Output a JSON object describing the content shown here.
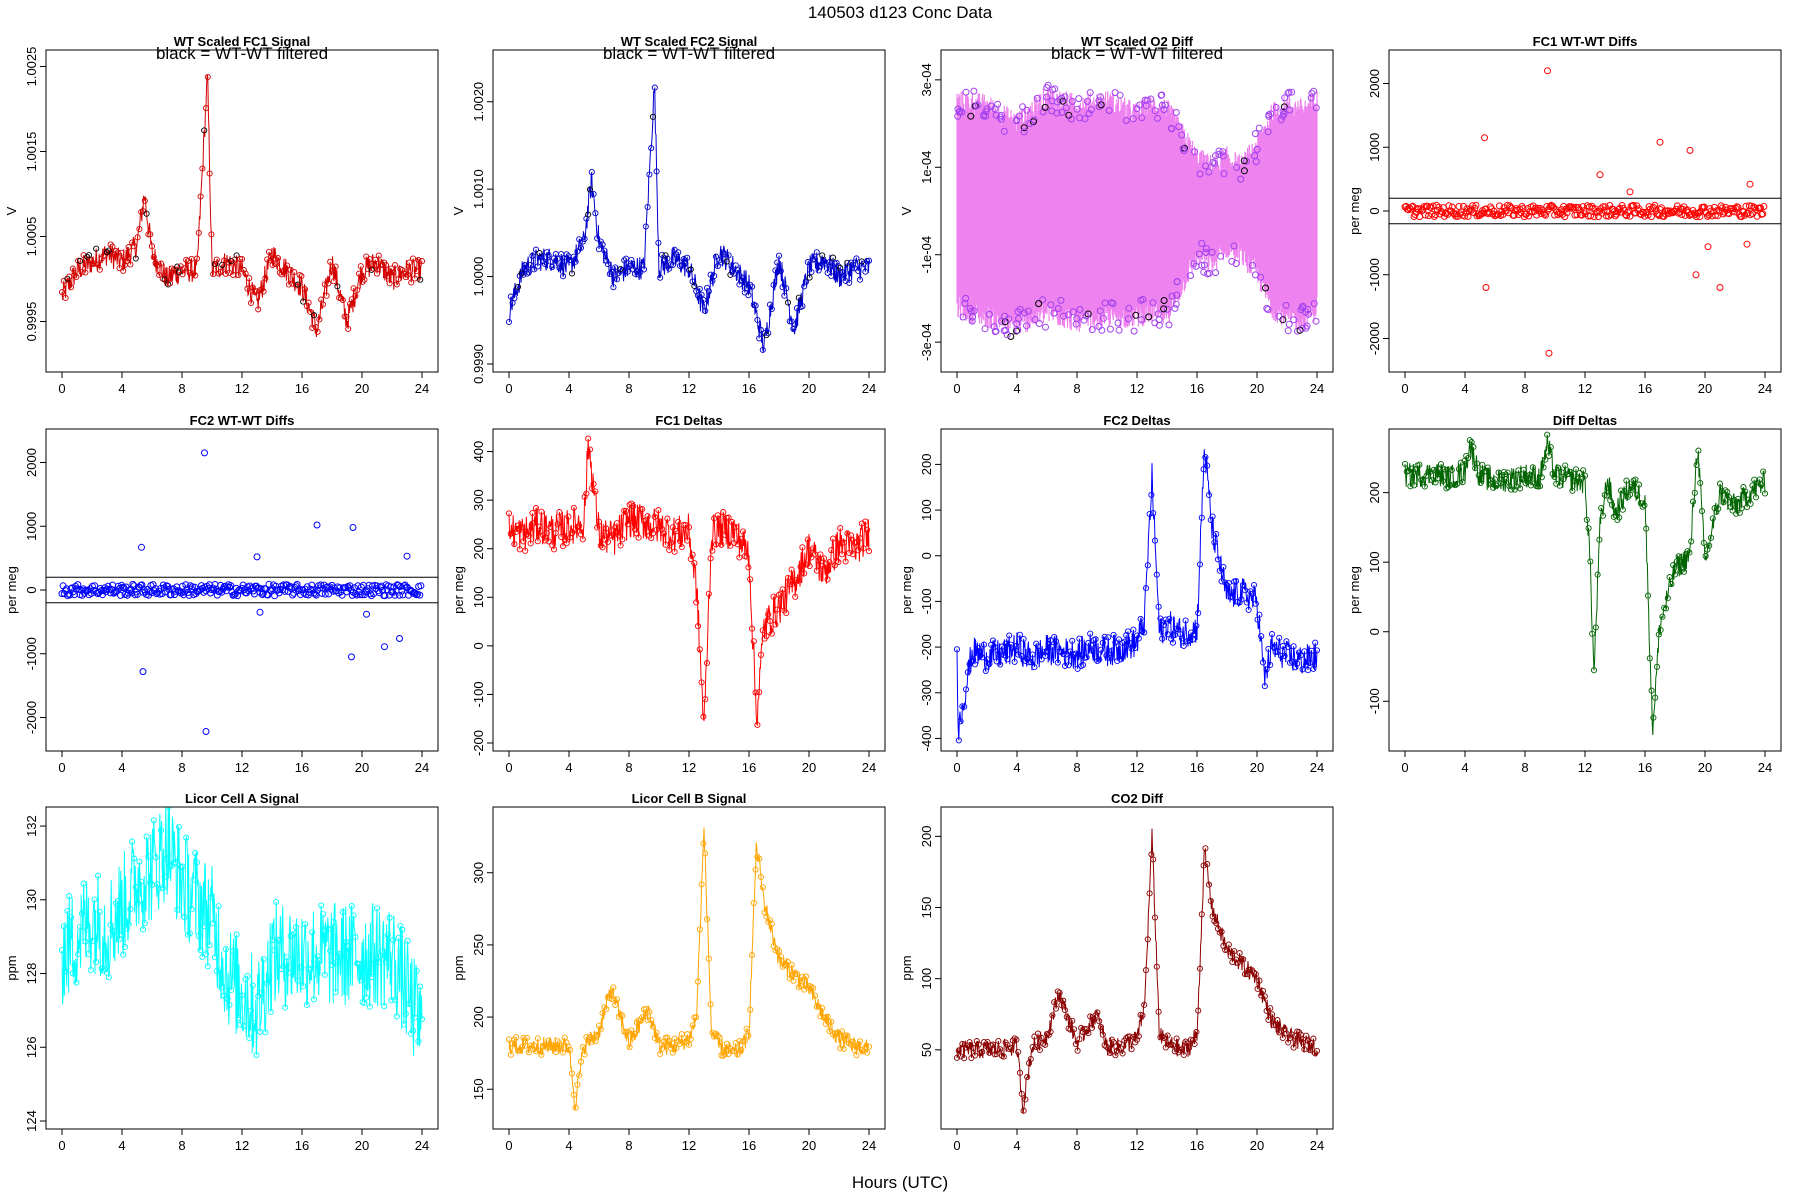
{
  "figure": {
    "title": "140503   d123   Conc Data",
    "xlabel": "Hours (UTC)"
  },
  "chart_data": [
    {
      "type": "line",
      "title": "WT Scaled FC1 Signal",
      "note": "black = WT-WT filtered",
      "ylabel": "V",
      "color": "#d40000",
      "xlim": [
        0,
        24
      ],
      "ylim": [
        0.999,
        1.0026
      ],
      "xticks": [
        0,
        4,
        8,
        12,
        16,
        20,
        24
      ],
      "yticks": [
        0.9995,
        1.0005,
        1.0015,
        1.0025
      ],
      "ytick_labels": [
        "0.9995",
        "1.0005",
        "1.0015",
        "1.0025"
      ],
      "x": [
        0,
        1,
        2,
        3,
        4,
        5,
        5.5,
        6,
        7,
        8,
        9,
        9.7,
        10,
        11,
        12,
        13,
        14,
        15,
        16,
        17,
        18,
        19,
        20,
        21,
        22,
        23,
        24
      ],
      "y": [
        0.9998,
        1.0001,
        1.0002,
        1.0003,
        1.0002,
        1.0004,
        1.001,
        1.0003,
        1.0,
        1.0001,
        1.0001,
        1.0024,
        1.0001,
        1.0002,
        1.0001,
        0.9997,
        1.0003,
        1.0001,
        0.9999,
        0.9994,
        1.0002,
        0.9995,
        1.0001,
        1.0002,
        1.0,
        1.0001,
        1.0001
      ]
    },
    {
      "type": "line",
      "title": "WT Scaled FC2 Signal",
      "note": "black = WT-WT filtered",
      "ylabel": "V",
      "color": "#0000cc",
      "xlim": [
        0,
        24
      ],
      "ylim": [
        0.999,
        1.0025
      ],
      "xticks": [
        0,
        4,
        8,
        12,
        16,
        20,
        24
      ],
      "yticks": [
        0.999,
        1.0,
        1.001,
        1.002
      ],
      "ytick_labels": [
        "0.9990",
        "1.0000",
        "1.0010",
        "1.0020"
      ],
      "x": [
        0,
        1,
        2,
        3,
        4,
        5,
        5.5,
        6,
        7,
        8,
        9,
        9.7,
        10,
        11,
        12,
        13,
        14,
        15,
        16,
        17,
        18,
        19,
        20,
        21,
        22,
        23,
        24
      ],
      "y": [
        0.9996,
        1.0001,
        1.0002,
        1.0002,
        1.0001,
        1.0004,
        1.0011,
        1.0004,
        1.0,
        1.0001,
        1.0001,
        1.0022,
        1.0001,
        1.0002,
        1.0001,
        0.9996,
        1.0003,
        1.0001,
        0.9999,
        0.9992,
        1.0002,
        0.9994,
        1.0001,
        1.0002,
        1.0,
        1.0001,
        1.0001
      ]
    },
    {
      "type": "line",
      "title": "WT Scaled O2 Diff",
      "note": "black = WT-WT filtered",
      "ylabel": "V",
      "color": "#ee82ee",
      "marker_color": "#a040f0",
      "xlim": [
        0,
        24
      ],
      "ylim": [
        -0.00035,
        0.00035
      ],
      "xticks": [
        0,
        4,
        8,
        12,
        16,
        20,
        24
      ],
      "yticks": [
        -0.0003,
        -0.0001,
        0.0001,
        0.0003
      ],
      "ytick_labels": [
        "-3e-04",
        "-1e-04",
        "1e-04",
        "3e-04"
      ],
      "x": [
        0,
        2,
        4,
        6,
        8,
        10,
        12,
        13,
        14,
        16,
        17,
        18,
        19,
        20,
        21,
        22,
        23,
        24
      ],
      "upper": [
        0.00025,
        0.00024,
        0.0002,
        0.00026,
        0.00024,
        0.00025,
        0.00022,
        0.00024,
        0.00023,
        0.00012,
        0.0001,
        0.00012,
        0.0001,
        0.00015,
        0.00022,
        0.00024,
        0.00023,
        0.00025
      ],
      "lower": [
        -0.00022,
        -0.00024,
        -0.00026,
        -0.00023,
        -0.00025,
        -0.00024,
        -0.00024,
        -0.00023,
        -0.00024,
        -0.0001,
        -0.00012,
        -8e-05,
        -0.0001,
        -0.00014,
        -0.00022,
        -0.00024,
        -0.00025,
        -0.00022
      ]
    },
    {
      "type": "scatter",
      "title": "FC1 WT-WT Diffs",
      "ylabel": "per meg",
      "color": "#ff0000",
      "xlim": [
        0,
        24
      ],
      "ylim": [
        -2400,
        2400
      ],
      "xticks": [
        0,
        4,
        8,
        12,
        16,
        20,
        24
      ],
      "yticks": [
        -2000,
        -1000,
        0,
        1000,
        2000
      ],
      "ytick_labels": [
        "-2000",
        "-1000",
        "0",
        "1000",
        "2000"
      ],
      "hlines": [
        200,
        -200
      ],
      "outliers": [
        [
          5.3,
          1150
        ],
        [
          5.4,
          -1200
        ],
        [
          9.5,
          2200
        ],
        [
          9.6,
          -2230
        ],
        [
          13.0,
          570
        ],
        [
          15.0,
          300
        ],
        [
          17.0,
          1080
        ],
        [
          19.0,
          950
        ],
        [
          19.4,
          -1000
        ],
        [
          20.2,
          -560
        ],
        [
          21.0,
          -1200
        ],
        [
          22.8,
          -520
        ],
        [
          23.0,
          420
        ]
      ]
    },
    {
      "type": "scatter",
      "title": "FC2 WT-WT Diffs",
      "ylabel": "per meg",
      "color": "#0000ff",
      "xlim": [
        0,
        24
      ],
      "ylim": [
        -2400,
        2400
      ],
      "xticks": [
        0,
        4,
        8,
        12,
        16,
        20,
        24
      ],
      "yticks": [
        -2000,
        -1000,
        0,
        1000,
        2000
      ],
      "ytick_labels": [
        "-2000",
        "-1000",
        "0",
        "1000",
        "2000"
      ],
      "hlines": [
        200,
        -200
      ],
      "outliers": [
        [
          5.3,
          670
        ],
        [
          5.4,
          -1280
        ],
        [
          9.5,
          2150
        ],
        [
          9.6,
          -2220
        ],
        [
          13.0,
          520
        ],
        [
          13.2,
          -350
        ],
        [
          17.0,
          1020
        ],
        [
          19.3,
          -1050
        ],
        [
          19.4,
          980
        ],
        [
          20.3,
          -380
        ],
        [
          21.5,
          -890
        ],
        [
          22.5,
          -760
        ],
        [
          23.0,
          530
        ]
      ]
    },
    {
      "type": "line",
      "title": "FC1 Deltas",
      "ylabel": "per meg",
      "color": "#ff0000",
      "xlim": [
        0,
        24
      ],
      "ylim": [
        -200,
        430
      ],
      "xticks": [
        0,
        4,
        8,
        12,
        16,
        20,
        24
      ],
      "yticks": [
        -200,
        -100,
        0,
        100,
        200,
        300,
        400
      ],
      "ytick_labels": [
        "-200",
        "-100",
        "0",
        "100",
        "200",
        "300",
        "400"
      ],
      "x": [
        0,
        1,
        2,
        3,
        4,
        5,
        5.3,
        6,
        7,
        8,
        9,
        10,
        11,
        12,
        12.5,
        13,
        13.5,
        14,
        15,
        16,
        16.5,
        17,
        18,
        19,
        20,
        21,
        22,
        23,
        24
      ],
      "y": [
        240,
        230,
        250,
        235,
        245,
        255,
        420,
        230,
        220,
        260,
        255,
        245,
        230,
        235,
        120,
        -170,
        230,
        240,
        235,
        190,
        -150,
        40,
        80,
        130,
        200,
        150,
        210,
        200,
        230
      ]
    },
    {
      "type": "line",
      "title": "FC2 Deltas",
      "ylabel": "per meg",
      "color": "#0000ff",
      "xlim": [
        0,
        24
      ],
      "ylim": [
        -410,
        260
      ],
      "xticks": [
        0,
        4,
        8,
        12,
        16,
        20,
        24
      ],
      "yticks": [
        -400,
        -300,
        -200,
        -100,
        0,
        100,
        200
      ],
      "ytick_labels": [
        "-400",
        "-300",
        "-200",
        "-100",
        "0",
        "100",
        "200"
      ],
      "x": [
        0,
        0.1,
        1,
        2,
        3,
        4,
        5,
        6,
        7,
        8,
        9,
        10,
        11,
        12,
        12.5,
        13,
        13.5,
        14,
        15,
        16,
        16.5,
        17,
        18,
        19,
        20,
        20.5,
        21,
        22,
        23,
        24
      ],
      "y": [
        -220,
        -380,
        -210,
        -220,
        -215,
        -200,
        -225,
        -205,
        -210,
        -215,
        -200,
        -210,
        -200,
        -190,
        -140,
        170,
        -170,
        -150,
        -170,
        -160,
        240,
        60,
        -90,
        -80,
        -100,
        -270,
        -200,
        -220,
        -230,
        -220
      ]
    },
    {
      "type": "line",
      "title": "Diff Deltas",
      "ylabel": "per meg",
      "color": "#006400",
      "xlim": [
        0,
        24
      ],
      "ylim": [
        -160,
        280
      ],
      "xticks": [
        0,
        4,
        8,
        12,
        16,
        20,
        24
      ],
      "yticks": [
        -100,
        0,
        100,
        200
      ],
      "ytick_labels": [
        "-100",
        "0",
        "100",
        "200"
      ],
      "x": [
        0,
        1,
        2,
        3,
        4,
        4.3,
        5,
        6,
        7,
        8,
        9,
        9.5,
        10,
        11,
        12,
        12.3,
        12.6,
        13,
        13.5,
        14,
        15,
        16,
        16.5,
        17,
        18,
        19,
        19.5,
        20,
        21,
        22,
        23,
        24
      ],
      "y": [
        225,
        225,
        228,
        222,
        230,
        270,
        225,
        215,
        220,
        225,
        222,
        270,
        225,
        220,
        215,
        120,
        -60,
        150,
        220,
        170,
        210,
        190,
        -140,
        10,
        90,
        110,
        270,
        100,
        200,
        180,
        200,
        215
      ]
    },
    {
      "type": "line",
      "title": "Licor Cell A Signal",
      "ylabel": "ppm",
      "color": "#00ffff",
      "xlim": [
        0,
        24
      ],
      "ylim": [
        124,
        132.3
      ],
      "xticks": [
        0,
        4,
        8,
        12,
        16,
        20,
        24
      ],
      "yticks": [
        124,
        126,
        128,
        130,
        132
      ],
      "ytick_labels": [
        "124",
        "126",
        "128",
        "130",
        "132"
      ],
      "x": [
        0,
        1,
        2,
        3,
        4,
        5,
        6,
        7,
        8,
        9,
        10,
        11,
        12,
        13,
        13.7,
        14,
        16,
        18,
        20,
        22,
        24
      ],
      "y": [
        128.5,
        129.0,
        129.5,
        129.2,
        129.8,
        130.5,
        130.8,
        131.5,
        130.5,
        130.0,
        129.5,
        128.0,
        127.5,
        127.0,
        128.0,
        128.5,
        128.5,
        128.5,
        128.5,
        128.5,
        126.5
      ]
    },
    {
      "type": "line",
      "title": "Licor Cell B Signal",
      "ylabel": "ppm",
      "color": "#ffa500",
      "xlim": [
        0,
        24
      ],
      "ylim": [
        128,
        340
      ],
      "xticks": [
        0,
        4,
        8,
        12,
        16,
        20,
        24
      ],
      "yticks": [
        150,
        200,
        250,
        300
      ],
      "ytick_labels": [
        "150",
        "200",
        "250",
        "300"
      ],
      "x": [
        0,
        2,
        4,
        4.4,
        5,
        6,
        6.8,
        8,
        9.3,
        10,
        11,
        12,
        12.5,
        13,
        13.5,
        14,
        15,
        15.5,
        16,
        16.5,
        17,
        18,
        19,
        20,
        21,
        22,
        23,
        24
      ],
      "y": [
        180,
        180,
        180,
        140,
        180,
        190,
        220,
        182,
        205,
        180,
        180,
        185,
        200,
        330,
        190,
        180,
        175,
        178,
        190,
        320,
        280,
        240,
        230,
        220,
        200,
        185,
        180,
        178
      ]
    },
    {
      "type": "line",
      "title": "CO2 Diff",
      "ylabel": "ppm",
      "color": "#8b0000",
      "xlim": [
        0,
        24
      ],
      "ylim": [
        0,
        215
      ],
      "xticks": [
        0,
        4,
        8,
        12,
        16,
        20,
        24
      ],
      "yticks": [
        50,
        100,
        150,
        200
      ],
      "ytick_labels": [
        "50",
        "100",
        "150",
        "200"
      ],
      "x": [
        0,
        2,
        4,
        4.4,
        5,
        6,
        6.8,
        8,
        9.3,
        10,
        11,
        12,
        12.5,
        13,
        13.5,
        14,
        15,
        15.5,
        16,
        16.5,
        17,
        18,
        19,
        20,
        21,
        22,
        23,
        24
      ],
      "y": [
        50,
        50,
        52,
        10,
        52,
        60,
        90,
        55,
        75,
        52,
        52,
        58,
        80,
        200,
        60,
        55,
        50,
        52,
        60,
        190,
        150,
        120,
        110,
        100,
        70,
        60,
        55,
        52
      ]
    }
  ]
}
